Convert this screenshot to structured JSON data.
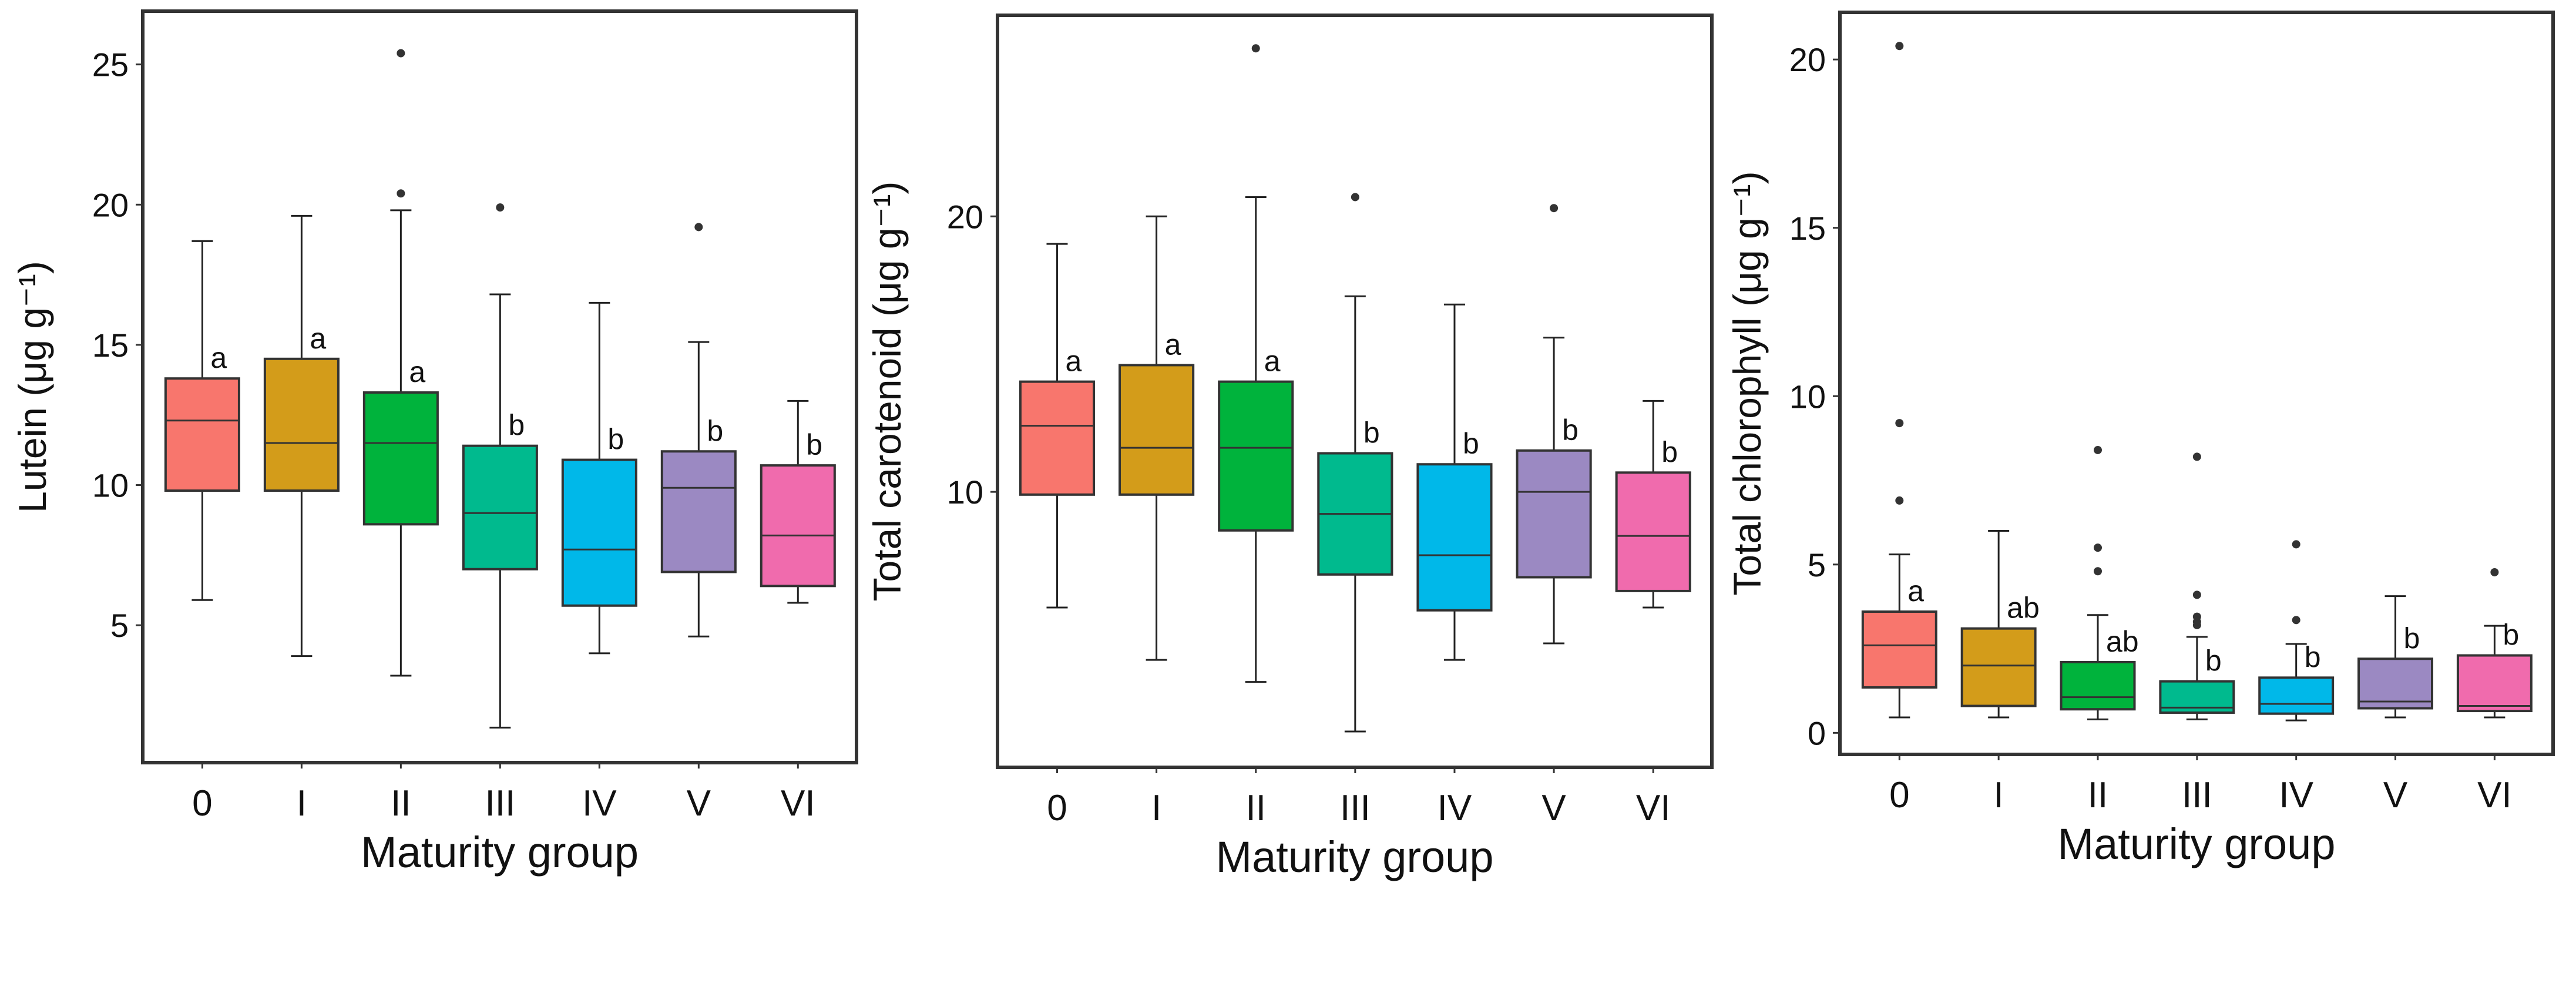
{
  "chart_data": [
    {
      "type": "box",
      "title": "",
      "xlabel": "Maturity group",
      "ylabel": "Lutein (μg g⁻¹)",
      "ylim": [
        0.1,
        26.9
      ],
      "yticks": [
        5,
        10,
        15,
        20,
        25
      ],
      "grid": false,
      "categories": [
        "0",
        "I",
        "II",
        "III",
        "IV",
        "V",
        "VI"
      ],
      "colors": [
        "#F8766D",
        "#D39C1A",
        "#00B33C",
        "#00BA8E",
        "#00B8E9",
        "#9B89C2",
        "#F06BAD"
      ],
      "boxes": [
        {
          "min": 5.9,
          "q1": 9.8,
          "median": 12.3,
          "q3": 13.8,
          "max": 18.7,
          "outliers": [],
          "letter": "a"
        },
        {
          "min": 3.9,
          "q1": 9.8,
          "median": 11.5,
          "q3": 14.5,
          "max": 19.6,
          "outliers": [],
          "letter": "a"
        },
        {
          "min": 3.2,
          "q1": 8.6,
          "median": 11.5,
          "q3": 13.3,
          "max": 19.8,
          "outliers": [
            20.4,
            25.4
          ],
          "letter": "a"
        },
        {
          "min": 1.35,
          "q1": 7.0,
          "median": 9.0,
          "q3": 11.4,
          "max": 16.8,
          "outliers": [
            19.9
          ],
          "letter": "b"
        },
        {
          "min": 4.0,
          "q1": 5.7,
          "median": 7.7,
          "q3": 10.9,
          "max": 16.5,
          "outliers": [],
          "letter": "b"
        },
        {
          "min": 4.6,
          "q1": 6.9,
          "median": 9.9,
          "q3": 11.2,
          "max": 15.1,
          "outliers": [
            19.2
          ],
          "letter": "b"
        },
        {
          "min": 5.8,
          "q1": 6.4,
          "median": 8.2,
          "q3": 10.7,
          "max": 13.0,
          "outliers": [],
          "letter": "b"
        }
      ]
    },
    {
      "type": "box",
      "title": "",
      "xlabel": "Maturity group",
      "ylabel": "Total carotenoid (μg g⁻¹)",
      "ylim": [
        0.0,
        27.3
      ],
      "yticks": [
        10,
        20
      ],
      "grid": false,
      "categories": [
        "0",
        "I",
        "II",
        "III",
        "IV",
        "V",
        "VI"
      ],
      "colors": [
        "#F8766D",
        "#D39C1A",
        "#00B33C",
        "#00BA8E",
        "#00B8E9",
        "#9B89C2",
        "#F06BAD"
      ],
      "boxes": [
        {
          "min": 5.8,
          "q1": 9.9,
          "median": 12.4,
          "q3": 14.0,
          "max": 19.0,
          "outliers": [],
          "letter": "a"
        },
        {
          "min": 3.9,
          "q1": 9.9,
          "median": 11.6,
          "q3": 14.6,
          "max": 20.0,
          "outliers": [],
          "letter": "a"
        },
        {
          "min": 3.1,
          "q1": 8.6,
          "median": 11.6,
          "q3": 14.0,
          "max": 20.7,
          "outliers": [
            26.1
          ],
          "letter": "a"
        },
        {
          "min": 1.3,
          "q1": 7.0,
          "median": 9.2,
          "q3": 11.4,
          "max": 17.1,
          "outliers": [
            20.7
          ],
          "letter": "b"
        },
        {
          "min": 3.9,
          "q1": 5.7,
          "median": 7.7,
          "q3": 11.0,
          "max": 16.8,
          "outliers": [],
          "letter": "b"
        },
        {
          "min": 4.5,
          "q1": 6.9,
          "median": 10.0,
          "q3": 11.5,
          "max": 15.6,
          "outliers": [
            20.3
          ],
          "letter": "b"
        },
        {
          "min": 5.8,
          "q1": 6.4,
          "median": 8.4,
          "q3": 10.7,
          "max": 13.3,
          "outliers": [],
          "letter": "b"
        }
      ]
    },
    {
      "type": "box",
      "title": "",
      "xlabel": "Maturity group",
      "ylabel": "Total chlorophyll (μg g⁻¹)",
      "ylim": [
        -0.64,
        21.4
      ],
      "yticks": [
        0,
        5,
        10,
        15,
        20
      ],
      "grid": false,
      "categories": [
        "0",
        "I",
        "II",
        "III",
        "IV",
        "V",
        "VI"
      ],
      "colors": [
        "#F8766D",
        "#D39C1A",
        "#00B33C",
        "#00BA8E",
        "#00B8E9",
        "#9B89C2",
        "#F06BAD"
      ],
      "boxes": [
        {
          "min": 0.46,
          "q1": 1.35,
          "median": 2.6,
          "q3": 3.6,
          "max": 5.3,
          "outliers": [
            6.9,
            9.2,
            20.4
          ],
          "letter": "a"
        },
        {
          "min": 0.46,
          "q1": 0.8,
          "median": 2.0,
          "q3": 3.1,
          "max": 6.0,
          "outliers": [],
          "letter": "ab"
        },
        {
          "min": 0.4,
          "q1": 0.7,
          "median": 1.06,
          "q3": 2.1,
          "max": 3.5,
          "outliers": [
            4.8,
            5.5,
            8.4
          ],
          "letter": "ab"
        },
        {
          "min": 0.4,
          "q1": 0.6,
          "median": 0.75,
          "q3": 1.53,
          "max": 2.85,
          "outliers": [
            3.2,
            3.3,
            3.45,
            4.1,
            8.2
          ],
          "letter": "b"
        },
        {
          "min": 0.37,
          "q1": 0.57,
          "median": 0.86,
          "q3": 1.64,
          "max": 2.64,
          "outliers": [
            3.35,
            5.6
          ],
          "letter": "b"
        },
        {
          "min": 0.46,
          "q1": 0.73,
          "median": 0.93,
          "q3": 2.2,
          "max": 4.06,
          "outliers": [],
          "letter": "b"
        },
        {
          "min": 0.46,
          "q1": 0.65,
          "median": 0.8,
          "q3": 2.3,
          "max": 3.18,
          "outliers": [
            4.77
          ],
          "letter": "b"
        }
      ]
    }
  ]
}
